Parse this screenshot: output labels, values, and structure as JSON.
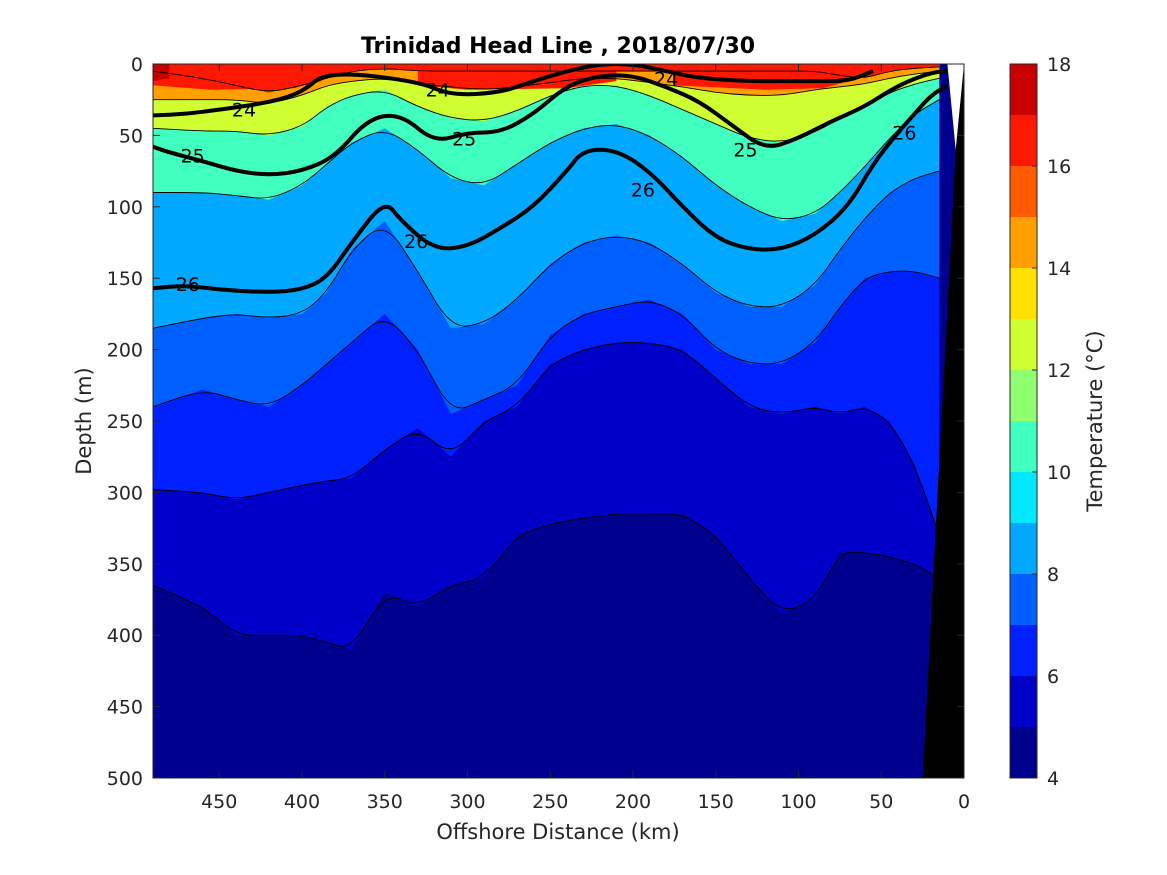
{
  "chart_data": {
    "type": "contour",
    "title": "Trinidad Head Line , 2018/07/30",
    "xlabel": "Offshore Distance (km)",
    "ylabel": "Depth (m)",
    "xlim": [
      490,
      0
    ],
    "ylim": [
      0,
      500
    ],
    "x_reversed": true,
    "y_reversed": true,
    "x_ticks": [
      450,
      400,
      350,
      300,
      250,
      200,
      150,
      100,
      50,
      0
    ],
    "y_ticks": [
      0,
      50,
      100,
      150,
      200,
      250,
      300,
      350,
      400,
      450,
      500
    ],
    "colorbar": {
      "label": "Temperature (°C)",
      "range": [
        4,
        18
      ],
      "ticks": [
        4,
        6,
        8,
        10,
        12,
        14,
        16,
        18
      ],
      "levels": [
        4,
        5,
        6,
        7,
        8,
        9,
        10,
        11,
        12,
        13,
        14,
        15,
        16,
        17,
        18
      ],
      "colors": [
        "#00008f",
        "#0000c8",
        "#0020ff",
        "#0060ff",
        "#00a8ff",
        "#00e8ff",
        "#40ffbf",
        "#8fff70",
        "#cfff30",
        "#ffe000",
        "#ffa000",
        "#ff5a00",
        "#ff1800",
        "#c80000"
      ]
    },
    "bathymetry": {
      "color": "#000000",
      "description": "seafloor on shelf near 0 km"
    },
    "isotherms": [
      {
        "level": 16,
        "x": [
          490,
          460,
          440,
          420,
          400,
          385,
          370,
          350,
          330,
          310,
          290,
          270,
          250,
          230,
          210,
          190,
          170,
          150,
          130,
          110,
          90,
          75,
          60,
          45,
          30,
          15
        ],
        "depth": [
          5,
          10,
          15,
          20,
          15,
          10,
          5,
          3,
          5,
          5,
          5,
          5,
          5,
          5,
          5,
          5,
          5,
          5,
          5,
          5,
          5,
          8,
          10,
          5,
          3,
          2
        ]
      },
      {
        "level": 14,
        "x": [
          490,
          460,
          440,
          420,
          400,
          385,
          370,
          350,
          330,
          310,
          290,
          270,
          250,
          230,
          210,
          190,
          170,
          150,
          130,
          110,
          90,
          75,
          60,
          45,
          30,
          15
        ],
        "depth": [
          25,
          25,
          25,
          28,
          22,
          15,
          12,
          10,
          14,
          16,
          18,
          16,
          13,
          10,
          10,
          13,
          16,
          20,
          22,
          22,
          18,
          16,
          14,
          10,
          7,
          5
        ]
      },
      {
        "level": 12,
        "x": [
          490,
          460,
          440,
          420,
          400,
          385,
          370,
          350,
          330,
          310,
          290,
          270,
          250,
          230,
          210,
          190,
          170,
          150,
          130,
          110,
          90,
          75,
          60,
          45,
          30,
          15
        ],
        "depth": [
          45,
          47,
          47,
          50,
          44,
          30,
          22,
          18,
          30,
          38,
          40,
          33,
          22,
          15,
          15,
          22,
          32,
          42,
          52,
          55,
          48,
          38,
          30,
          20,
          14,
          10
        ]
      },
      {
        "level": 10,
        "x": [
          490,
          460,
          440,
          420,
          400,
          385,
          370,
          350,
          330,
          310,
          290,
          270,
          250,
          230,
          210,
          190,
          170,
          150,
          130,
          110,
          90,
          75,
          60,
          45,
          30,
          15
        ],
        "depth": [
          90,
          90,
          92,
          95,
          85,
          70,
          55,
          45,
          60,
          80,
          85,
          70,
          55,
          45,
          42,
          50,
          65,
          85,
          100,
          110,
          105,
          90,
          72,
          52,
          35,
          25
        ]
      },
      {
        "level": 8,
        "x": [
          490,
          460,
          440,
          420,
          400,
          385,
          370,
          350,
          330,
          310,
          290,
          270,
          250,
          230,
          210,
          190,
          170,
          150,
          130,
          110,
          90,
          75,
          60,
          45,
          30,
          15
        ],
        "depth": [
          185,
          178,
          175,
          178,
          175,
          160,
          130,
          110,
          145,
          185,
          182,
          165,
          140,
          125,
          120,
          125,
          140,
          160,
          170,
          170,
          155,
          130,
          108,
          90,
          80,
          75
        ]
      },
      {
        "level": 7,
        "x": [
          490,
          460,
          440,
          420,
          400,
          385,
          370,
          350,
          330,
          310,
          290,
          270,
          250,
          230,
          210,
          190,
          170,
          150,
          130,
          110,
          90,
          75,
          60,
          45,
          30,
          15
        ],
        "depth": [
          240,
          228,
          235,
          240,
          225,
          210,
          195,
          175,
          200,
          245,
          235,
          225,
          190,
          175,
          170,
          165,
          175,
          200,
          210,
          210,
          195,
          170,
          150,
          145,
          145,
          150
        ]
      },
      {
        "level": 6,
        "x": [
          490,
          460,
          440,
          420,
          400,
          385,
          370,
          350,
          330,
          310,
          290,
          270,
          250,
          230,
          210,
          190,
          170,
          150,
          130,
          110,
          90,
          75,
          60,
          45,
          30,
          15
        ],
        "depth": [
          298,
          300,
          305,
          300,
          295,
          292,
          290,
          270,
          255,
          275,
          250,
          240,
          210,
          200,
          195,
          195,
          200,
          220,
          240,
          245,
          240,
          245,
          240,
          250,
          280,
          330
        ]
      },
      {
        "level": 5,
        "x": [
          490,
          460,
          440,
          420,
          400,
          385,
          370,
          350,
          330,
          310,
          290,
          270,
          250,
          230,
          210,
          190,
          170,
          150,
          130,
          110,
          90,
          75,
          60,
          45,
          30,
          15
        ],
        "depth": [
          365,
          380,
          400,
          400,
          400,
          405,
          410,
          370,
          380,
          365,
          360,
          330,
          322,
          318,
          315,
          315,
          315,
          330,
          360,
          385,
          375,
          342,
          342,
          345,
          350,
          360
        ]
      }
    ],
    "contour_labels": [
      {
        "text": "24",
        "x": 435,
        "depth": 32
      },
      {
        "text": "24",
        "x": 318,
        "depth": 18
      },
      {
        "text": "24",
        "x": 180,
        "depth": 10
      },
      {
        "text": "25",
        "x": 466,
        "depth": 64
      },
      {
        "text": "25",
        "x": 302,
        "depth": 52
      },
      {
        "text": "25",
        "x": 132,
        "depth": 60
      },
      {
        "text": "26",
        "x": 36,
        "depth": 48
      },
      {
        "text": "26",
        "x": 194,
        "depth": 88
      },
      {
        "text": "26",
        "x": 331,
        "depth": 124
      },
      {
        "text": "26",
        "x": 469,
        "depth": 154
      }
    ],
    "thick_contours": [
      {
        "level": 24,
        "x": [
          490,
          470,
          450,
          420,
          400,
          385,
          330,
          310,
          280,
          260,
          240,
          220,
          200,
          180,
          160,
          130,
          110,
          90,
          70,
          55
        ],
        "depth": [
          36,
          35,
          32,
          27,
          20,
          5,
          12,
          22,
          20,
          12,
          5,
          0,
          0,
          5,
          10,
          12,
          12,
          12,
          12,
          5
        ]
      },
      {
        "level": 25,
        "x": [
          490,
          480,
          460,
          440,
          420,
          400,
          380,
          360,
          340,
          320,
          300,
          280,
          260,
          240,
          220,
          200,
          180,
          160,
          140,
          120,
          100,
          80,
          60,
          40,
          20,
          10
        ],
        "depth": [
          58,
          62,
          68,
          75,
          78,
          75,
          65,
          38,
          35,
          55,
          48,
          48,
          35,
          15,
          8,
          8,
          16,
          26,
          43,
          60,
          52,
          40,
          30,
          15,
          6,
          5
        ]
      },
      {
        "level": 26,
        "x": [
          490,
          470,
          450,
          420,
          400,
          385,
          370,
          350,
          340,
          320,
          300,
          280,
          260,
          240,
          230,
          210,
          190,
          170,
          150,
          130,
          110,
          90,
          70,
          55,
          40,
          30,
          20,
          10
        ],
        "depth": [
          157,
          155,
          158,
          160,
          158,
          150,
          125,
          95,
          110,
          130,
          128,
          115,
          100,
          75,
          60,
          60,
          75,
          100,
          122,
          130,
          130,
          120,
          100,
          70,
          48,
          35,
          22,
          15
        ]
      }
    ]
  }
}
